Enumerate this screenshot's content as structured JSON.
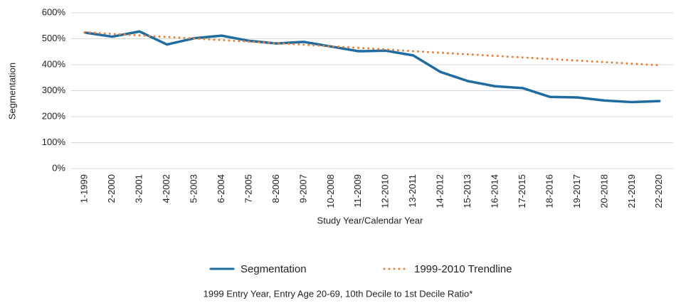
{
  "chart_data": {
    "type": "line",
    "y_label": "Segmentation",
    "x_label": "Study Year/Calendar Year",
    "note": "1999 Entry Year, Entry Age 20-69, 10th Decile to 1st Decile Ratio*",
    "categories": [
      "1-1999",
      "2-2000",
      "3-2001",
      "4-2002",
      "5-2003",
      "6-2004",
      "7-2005",
      "8-2006",
      "9-2007",
      "10-2008",
      "11-2009",
      "12-2010",
      "13-2011",
      "14-2012",
      "15-2013",
      "16-2014",
      "17-2015",
      "18-2016",
      "19-2017",
      "20-2018",
      "21-2019",
      "22-2020"
    ],
    "series": [
      {
        "name": "Segmentation",
        "color": "#1f6ca0",
        "style": "solid",
        "values": [
          524,
          508,
          528,
          478,
          502,
          512,
          492,
          482,
          488,
          470,
          452,
          454,
          436,
          372,
          337,
          317,
          310,
          276,
          274,
          262,
          256,
          260
        ]
      },
      {
        "name": "1999-2010 Trendline",
        "color": "#ed7d31",
        "style": "dotted",
        "values": [
          525,
          519,
          513,
          507,
          501,
          495,
          489,
          483,
          477,
          471,
          465,
          459,
          452,
          446,
          440,
          434,
          428,
          422,
          416,
          410,
          404,
          398
        ]
      }
    ],
    "ylim": [
      0,
      600
    ],
    "yticks": [
      {
        "value": 0,
        "label": "0%"
      },
      {
        "value": 100,
        "label": "100%"
      },
      {
        "value": 200,
        "label": "200%"
      },
      {
        "value": 300,
        "label": "300%"
      },
      {
        "value": 400,
        "label": "400%"
      },
      {
        "value": 500,
        "label": "500%"
      },
      {
        "value": 600,
        "label": "600%"
      }
    ],
    "grid": true
  }
}
